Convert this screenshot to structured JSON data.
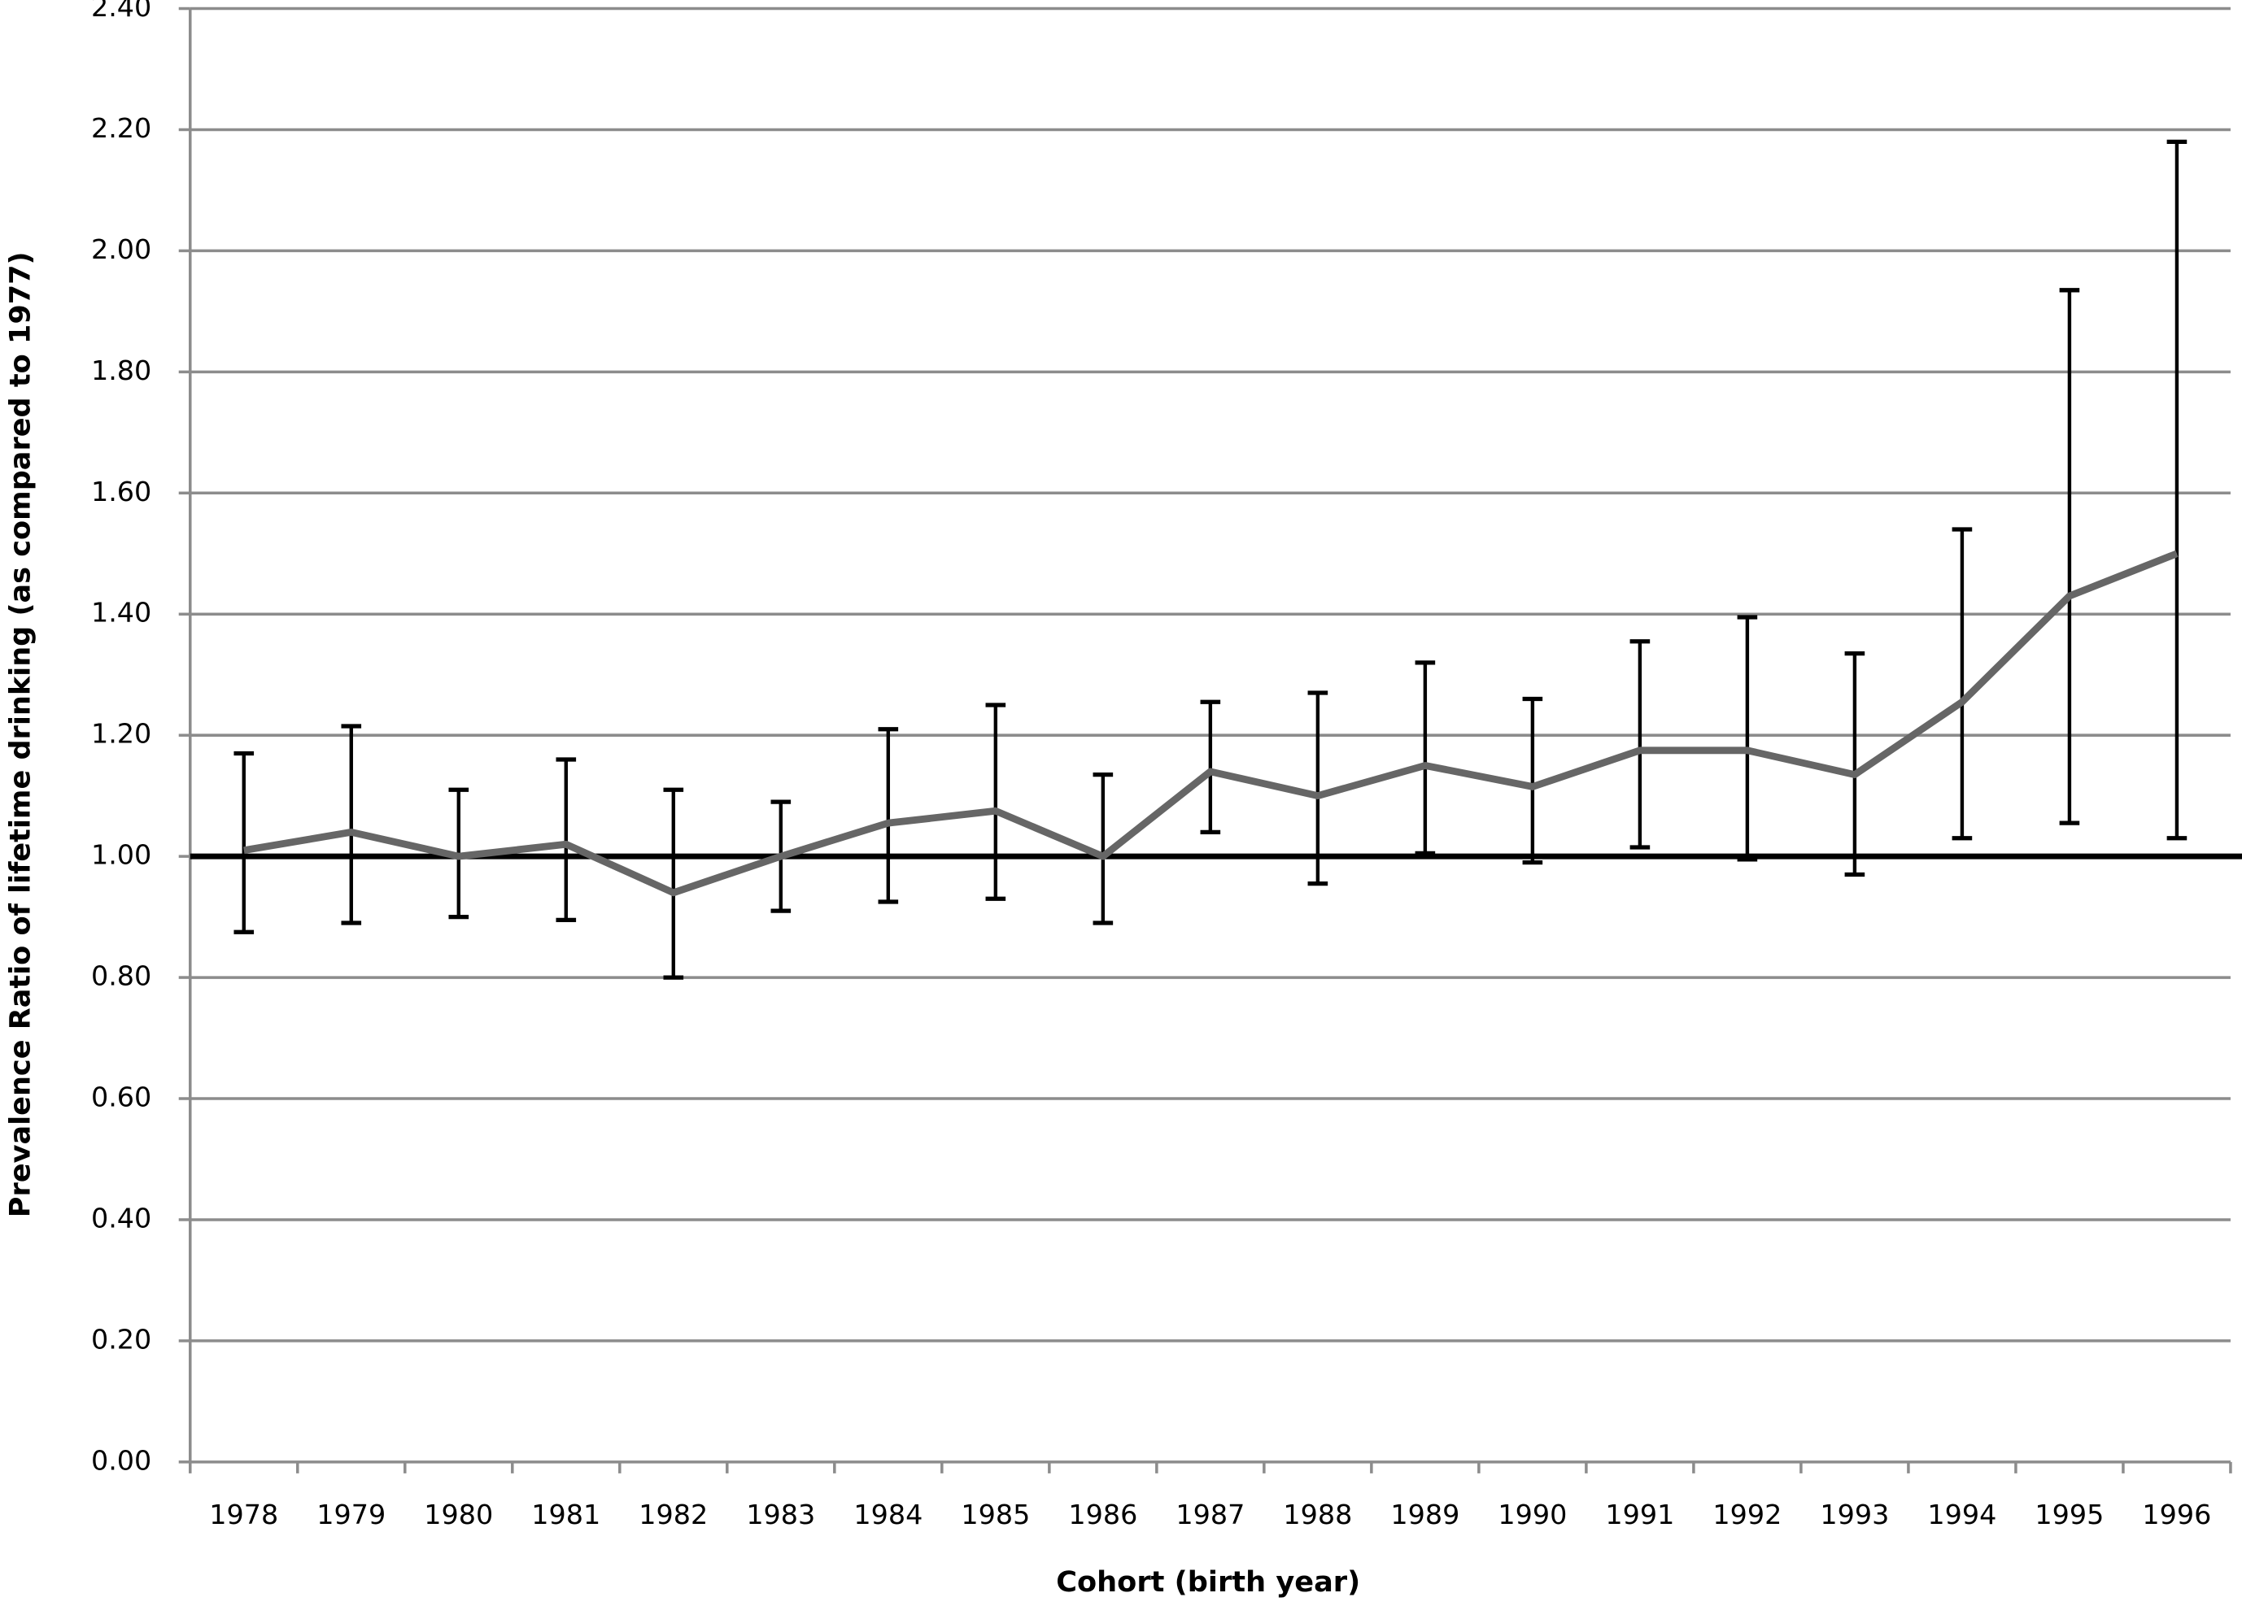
{
  "chart_data": {
    "type": "line",
    "x_label": "Cohort (birth year)",
    "y_label": "Prevalence Ratio of lifetime drinking (as compared to 1977)",
    "categories": [
      "1978",
      "1979",
      "1980",
      "1981",
      "1982",
      "1983",
      "1984",
      "1985",
      "1986",
      "1987",
      "1988",
      "1989",
      "1990",
      "1991",
      "1992",
      "1993",
      "1994",
      "1995",
      "1996"
    ],
    "values": [
      1.01,
      1.04,
      1.0,
      1.02,
      0.94,
      1.0,
      1.055,
      1.075,
      1.0,
      1.14,
      1.1,
      1.15,
      1.115,
      1.175,
      1.175,
      1.135,
      1.255,
      1.43,
      1.5
    ],
    "ci_lower": [
      0.875,
      0.89,
      0.9,
      0.895,
      0.8,
      0.91,
      0.925,
      0.93,
      0.89,
      1.04,
      0.955,
      1.005,
      0.99,
      1.015,
      0.995,
      0.97,
      1.03,
      1.055,
      1.03
    ],
    "ci_upper": [
      1.17,
      1.215,
      1.11,
      1.16,
      1.11,
      1.09,
      1.21,
      1.25,
      1.135,
      1.255,
      1.27,
      1.32,
      1.26,
      1.355,
      1.395,
      1.335,
      1.54,
      1.935,
      2.18
    ],
    "color": "#666666",
    "error_color": "#000000",
    "reference_line": 1,
    "ylim": [
      0,
      2.4
    ],
    "yticks": [
      {
        "value": 0,
        "label": "0.00"
      },
      {
        "value": 0.2,
        "label": "0.20"
      },
      {
        "value": 0.4,
        "label": "0.40"
      },
      {
        "value": 0.6,
        "label": "0.60"
      },
      {
        "value": 0.8,
        "label": "0.80"
      },
      {
        "value": 1,
        "label": "1.00"
      },
      {
        "value": 1.2,
        "label": "1.20"
      },
      {
        "value": 1.4,
        "label": "1.40"
      },
      {
        "value": 1.6,
        "label": "1.60"
      },
      {
        "value": 1.8,
        "label": "1.80"
      },
      {
        "value": 2,
        "label": "2.00"
      },
      {
        "value": 2.2,
        "label": "2.20"
      },
      {
        "value": 2.4,
        "label": "2.40"
      }
    ],
    "grid": true
  }
}
